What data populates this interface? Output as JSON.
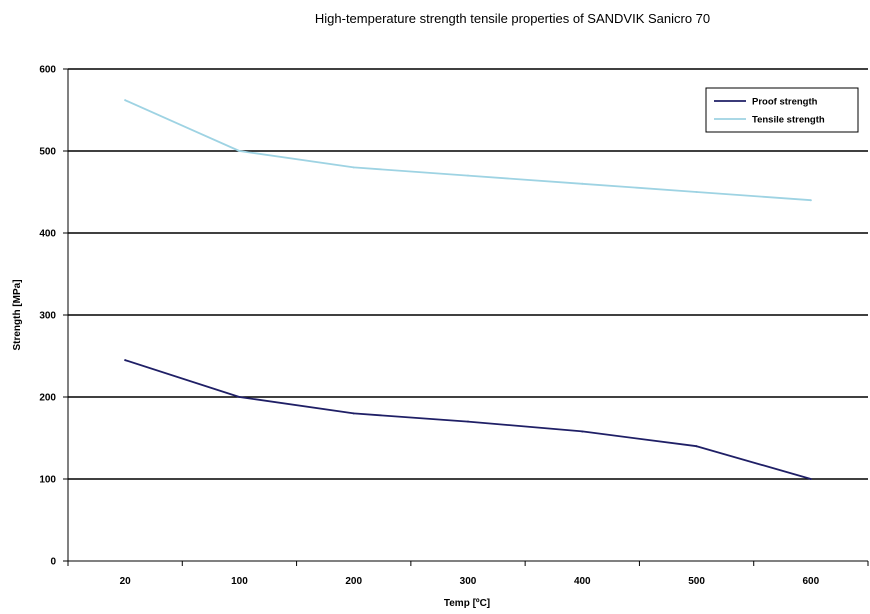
{
  "chart_data": {
    "type": "line",
    "title": "High-temperature strength tensile properties of SANDVIK Sanicro 70",
    "xlabel": "Temp [ºC]",
    "ylabel": "Strength [MPa]",
    "categories": [
      "20",
      "100",
      "200",
      "300",
      "400",
      "500",
      "600"
    ],
    "ylim": [
      0,
      600
    ],
    "yticks": [
      "0",
      "100",
      "200",
      "300",
      "400",
      "500",
      "600"
    ],
    "grid": true,
    "legend_position": "top-right",
    "series": [
      {
        "name": "Proof strength",
        "color": "#1f1f66",
        "values": [
          245,
          200,
          180,
          170,
          158,
          140,
          100
        ]
      },
      {
        "name": "Tensile strength",
        "color": "#9ed3e3",
        "values": [
          562,
          500,
          480,
          470,
          460,
          450,
          440
        ]
      }
    ]
  }
}
